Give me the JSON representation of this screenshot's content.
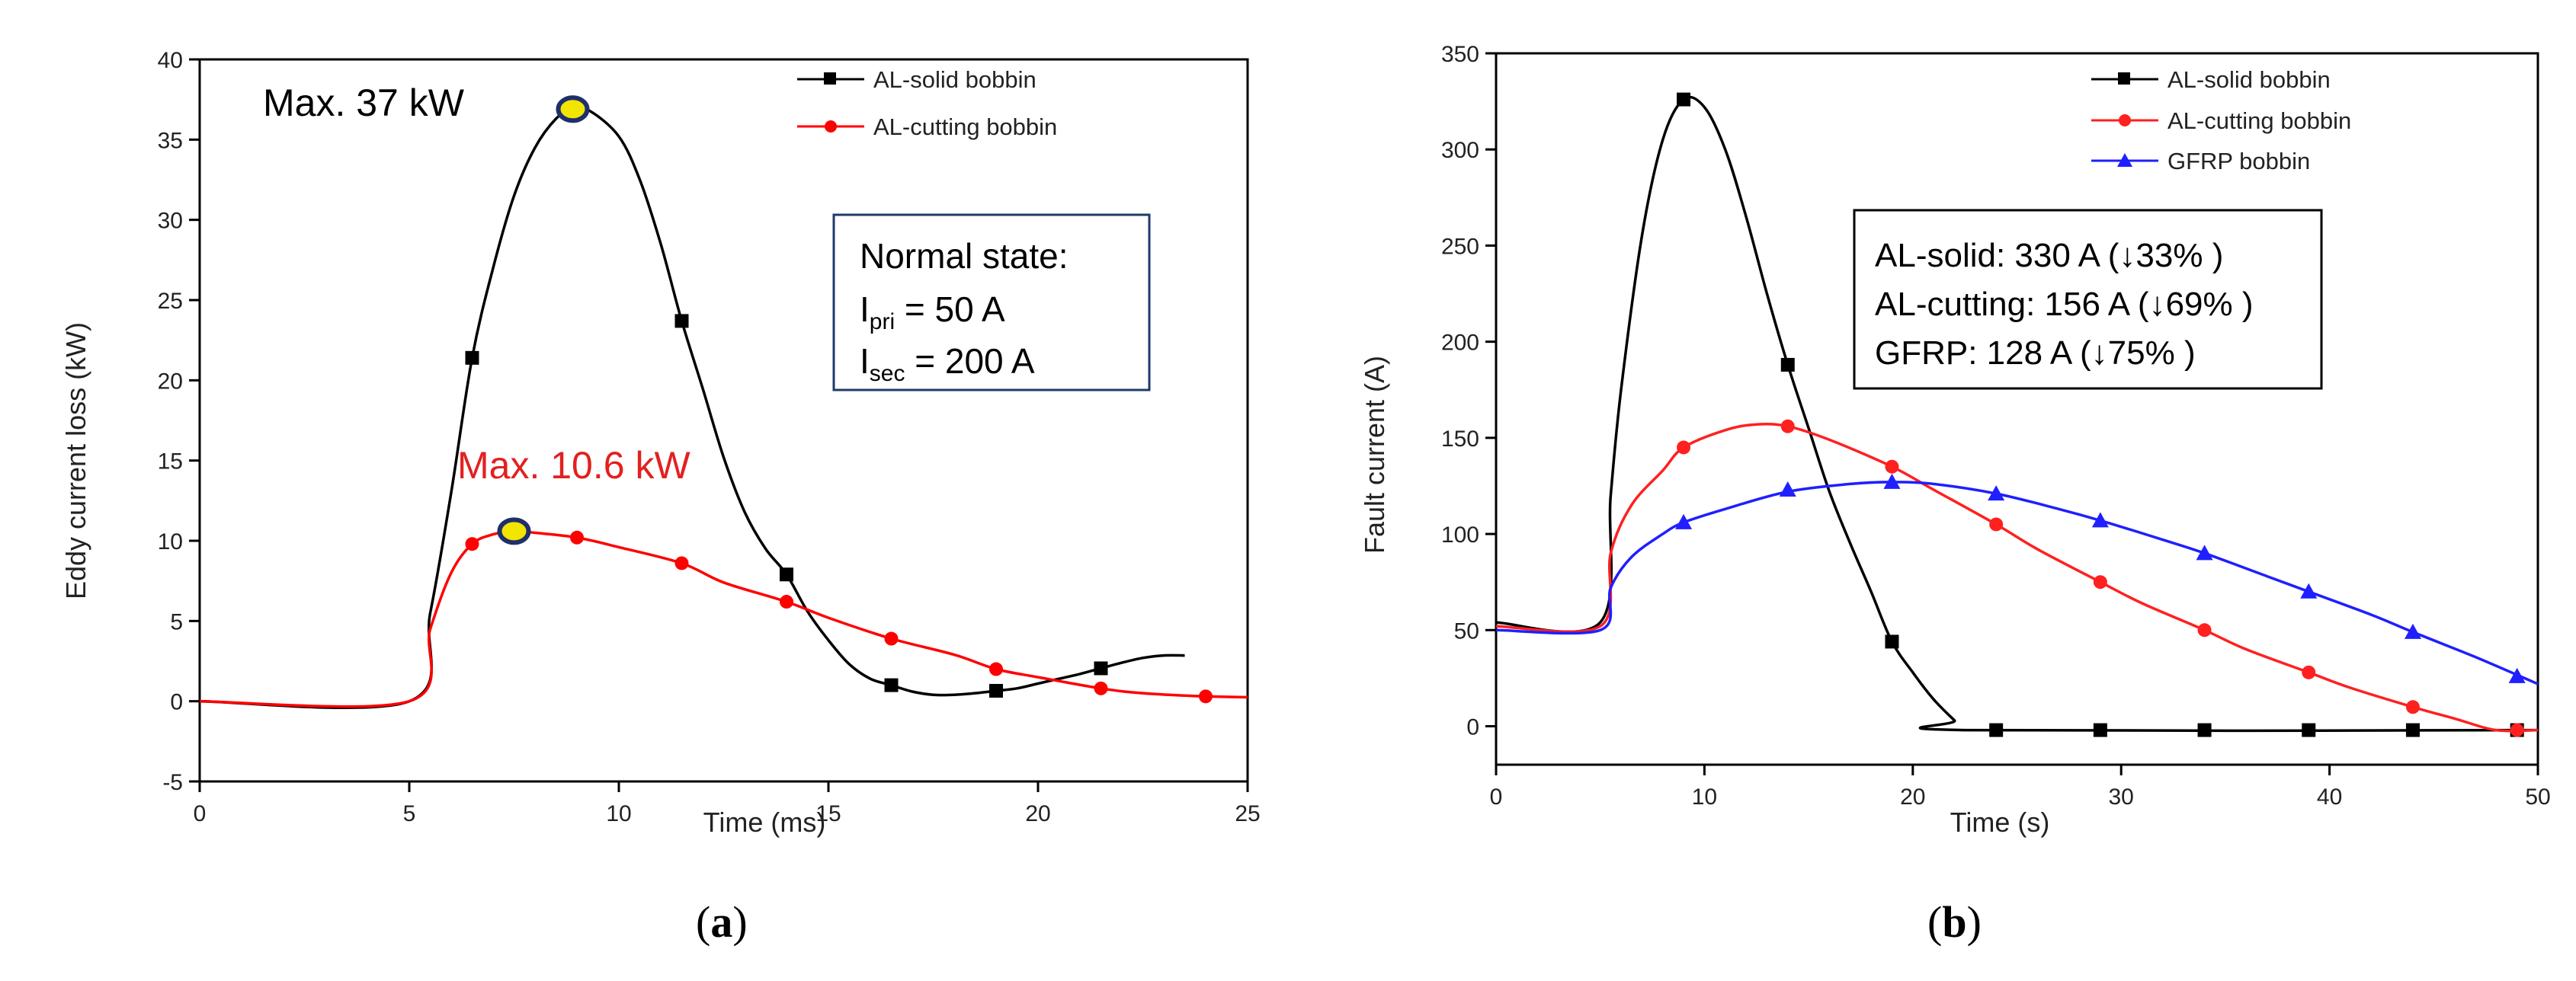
{
  "chart_data": [
    {
      "type": "line",
      "caption": "a",
      "xlabel": "Time (ms)",
      "ylabel": "Eddy current loss (kW)",
      "xlim": [
        0,
        25
      ],
      "ylim": [
        -5,
        40
      ],
      "xticks": [
        0,
        5,
        10,
        15,
        20,
        25
      ],
      "yticks": [
        -5,
        0,
        5,
        10,
        15,
        20,
        25,
        30,
        35,
        40
      ],
      "legend_position": "top-right",
      "series": [
        {
          "name": "AL-solid bobbin",
          "color": "#000000",
          "marker": "square",
          "curve": [
            [
              0,
              0
            ],
            [
              5,
              0
            ],
            [
              5.5,
              5.5
            ],
            [
              6,
              13
            ],
            [
              6.5,
              21.4
            ],
            [
              7,
              27
            ],
            [
              7.5,
              31.5
            ],
            [
              8,
              34.5
            ],
            [
              8.5,
              36.3
            ],
            [
              8.9,
              36.9
            ],
            [
              9.3,
              36.8
            ],
            [
              10,
              35.2
            ],
            [
              10.5,
              32.5
            ],
            [
              11,
              28.5
            ],
            [
              11.5,
              23.7
            ],
            [
              12,
              19.5
            ],
            [
              12.5,
              15.2
            ],
            [
              13,
              11.8
            ],
            [
              13.5,
              9.5
            ],
            [
              14,
              7.9
            ],
            [
              14.5,
              5.6
            ],
            [
              15,
              3.8
            ],
            [
              15.5,
              2.3
            ],
            [
              16,
              1.4
            ],
            [
              16.5,
              1.0
            ],
            [
              17,
              0.6
            ],
            [
              17.5,
              0.4
            ],
            [
              18,
              0.4
            ],
            [
              18.5,
              0.5
            ],
            [
              19,
              0.65
            ],
            [
              19.5,
              0.8
            ],
            [
              20,
              1.1
            ],
            [
              20.5,
              1.4
            ],
            [
              21,
              1.7
            ],
            [
              21.5,
              2.05
            ],
            [
              22,
              2.4
            ],
            [
              22.5,
              2.7
            ],
            [
              23,
              2.85
            ],
            [
              23.5,
              2.85
            ]
          ],
          "markers": [
            [
              6.5,
              21.4
            ],
            [
              9,
              37.0
            ],
            [
              11.5,
              23.7
            ],
            [
              14,
              7.9
            ],
            [
              16.5,
              1.0
            ],
            [
              19,
              0.65
            ],
            [
              21.5,
              2.05
            ]
          ]
        },
        {
          "name": "AL-cutting bobbin",
          "color": "#ff0000",
          "marker": "circle",
          "curve": [
            [
              0,
              0
            ],
            [
              5,
              0
            ],
            [
              5.5,
              4.5
            ],
            [
              6,
              8.0
            ],
            [
              6.5,
              9.8
            ],
            [
              7,
              10.4
            ],
            [
              7.5,
              10.6
            ],
            [
              8,
              10.5
            ],
            [
              9,
              10.2
            ],
            [
              10,
              9.6
            ],
            [
              11.5,
              8.6
            ],
            [
              12.5,
              7.4
            ],
            [
              14,
              6.2
            ],
            [
              15,
              5.2
            ],
            [
              16.5,
              3.9
            ],
            [
              18,
              2.9
            ],
            [
              19,
              2.0
            ],
            [
              20,
              1.5
            ],
            [
              21.5,
              0.8
            ],
            [
              22.5,
              0.5
            ],
            [
              24,
              0.3
            ],
            [
              25,
              0.25
            ]
          ],
          "markers": [
            [
              6.5,
              9.8
            ],
            [
              7.5,
              10.6
            ],
            [
              9,
              10.2
            ],
            [
              11.5,
              8.6
            ],
            [
              14,
              6.2
            ],
            [
              16.5,
              3.9
            ],
            [
              19,
              2.0
            ],
            [
              21.5,
              0.8
            ],
            [
              24,
              0.3
            ]
          ]
        }
      ],
      "highlights": [
        [
          8.9,
          36.9
        ],
        [
          7.5,
          10.6
        ]
      ],
      "annotations": {
        "max_black": "Max. 37 kW",
        "max_red": "Max. 10.6 kW"
      },
      "textbox": {
        "title": "Normal state:",
        "line1_main": "I",
        "line1_sub": "pri",
        "line1_value": " = 50 A",
        "line2_main": "I",
        "line2_sub": "sec",
        "line2_value": " = 200 A"
      }
    },
    {
      "type": "line",
      "caption": "b",
      "xlabel": "Time (s)",
      "ylabel": "Fault current (A)",
      "xlim": [
        0,
        50
      ],
      "ylim": [
        -20,
        350
      ],
      "xticks": [
        0,
        10,
        20,
        30,
        40,
        50
      ],
      "yticks": [
        0,
        50,
        100,
        150,
        200,
        250,
        300,
        350
      ],
      "legend_position": "top-right",
      "series": [
        {
          "name": "AL-solid bobbin",
          "color": "#000000",
          "marker": "square",
          "curve": [
            [
              0,
              54
            ],
            [
              5,
              54
            ],
            [
              5.5,
              120
            ],
            [
              6,
              175
            ],
            [
              7,
              255
            ],
            [
              8,
              305
            ],
            [
              9,
              326
            ],
            [
              10,
              322
            ],
            [
              11,
              300
            ],
            [
              12,
              265
            ],
            [
              13,
              225
            ],
            [
              14,
              188
            ],
            [
              15,
              155
            ],
            [
              16,
              122
            ],
            [
              17,
              95
            ],
            [
              18,
              70
            ],
            [
              19,
              44
            ],
            [
              20,
              28
            ],
            [
              21,
              14
            ],
            [
              22,
              3
            ],
            [
              22.5,
              -2
            ],
            [
              50,
              -2
            ]
          ],
          "markers": [
            [
              9,
              326
            ],
            [
              14,
              188
            ],
            [
              19,
              44
            ],
            [
              24,
              -2
            ],
            [
              29,
              -2
            ],
            [
              34,
              -2
            ],
            [
              39,
              -2
            ],
            [
              44,
              -2
            ],
            [
              49,
              -2
            ]
          ]
        },
        {
          "name": "AL-cutting bobbin",
          "color": "#ff2020",
          "marker": "circle",
          "curve": [
            [
              0,
              52
            ],
            [
              5,
              52
            ],
            [
              5.5,
              90
            ],
            [
              6.5,
              115
            ],
            [
              8,
              133
            ],
            [
              9,
              145
            ],
            [
              11,
              154
            ],
            [
              12.5,
              157
            ],
            [
              14,
              156
            ],
            [
              16,
              149
            ],
            [
              19,
              135
            ],
            [
              21,
              123
            ],
            [
              24,
              105
            ],
            [
              26,
              92
            ],
            [
              29,
              75
            ],
            [
              31,
              64
            ],
            [
              34,
              50
            ],
            [
              36,
              40
            ],
            [
              39,
              28
            ],
            [
              41,
              20
            ],
            [
              44,
              10
            ],
            [
              46,
              4
            ],
            [
              48,
              -2
            ],
            [
              50,
              -2
            ]
          ],
          "markers": [
            [
              9,
              145
            ],
            [
              14,
              156
            ],
            [
              19,
              135
            ],
            [
              24,
              105
            ],
            [
              29,
              75
            ],
            [
              34,
              50
            ],
            [
              39,
              28
            ],
            [
              44,
              10
            ],
            [
              49,
              -2
            ]
          ]
        },
        {
          "name": "GFRP bobbin",
          "color": "#1f1fff",
          "marker": "triangle",
          "curve": [
            [
              0,
              50
            ],
            [
              5,
              50
            ],
            [
              5.5,
              72
            ],
            [
              6.5,
              88
            ],
            [
              8,
              100
            ],
            [
              9,
              106
            ],
            [
              11,
              113
            ],
            [
              14,
              122
            ],
            [
              17,
              126
            ],
            [
              19,
              127
            ],
            [
              21,
              126
            ],
            [
              24,
              121
            ],
            [
              27,
              113
            ],
            [
              29,
              107
            ],
            [
              32,
              97
            ],
            [
              34,
              90
            ],
            [
              37,
              78
            ],
            [
              39,
              70
            ],
            [
              42,
              58
            ],
            [
              44,
              49
            ],
            [
              47,
              36
            ],
            [
              50,
              22
            ]
          ],
          "markers": [
            [
              9,
              106
            ],
            [
              14,
              123
            ],
            [
              19,
              127
            ],
            [
              24,
              121
            ],
            [
              29,
              107
            ],
            [
              34,
              90
            ],
            [
              39,
              70
            ],
            [
              44,
              49
            ],
            [
              49,
              26
            ]
          ]
        }
      ],
      "textbox": {
        "line1": "AL-solid: 330 A (↓33% )",
        "line2": "AL-cutting: 156 A (↓69% )",
        "line3": "GFRP: 128 A (↓75% )"
      }
    }
  ]
}
